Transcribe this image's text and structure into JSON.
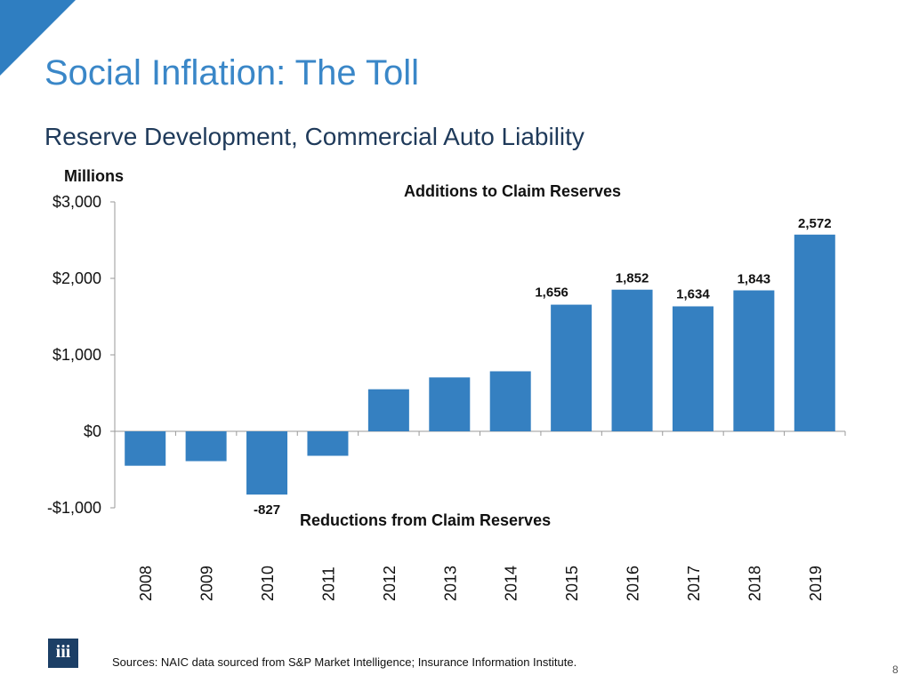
{
  "slide": {
    "title": "Social Inflation: The Toll",
    "subtitle": "Reserve Development, Commercial Auto Liability",
    "units_label": "Millions",
    "source": "Sources: NAIC data sourced from S&P Market Intelligence; Insurance Information Institute.",
    "page_number": "8",
    "logo_text": "iii"
  },
  "chart_data": {
    "type": "bar",
    "title": "Additions to Claim Reserves",
    "annotation_negative": "Reductions from Claim Reserves",
    "xlabel": "",
    "ylabel": "Millions",
    "ylim": [
      -1000,
      3000
    ],
    "yticks": [
      3000,
      2000,
      1000,
      0,
      -1000
    ],
    "ytick_labels": [
      "$3,000",
      "$2,000",
      "$1,000",
      "$0",
      "-$1,000"
    ],
    "categories": [
      "2008",
      "2009",
      "2010",
      "2011",
      "2012",
      "2013",
      "2014",
      "2015",
      "2016",
      "2017",
      "2018",
      "2019"
    ],
    "values": [
      -450,
      -390,
      -827,
      -320,
      550,
      705,
      785,
      1656,
      1852,
      1634,
      1843,
      2572
    ],
    "data_labels": [
      "",
      "",
      "-827",
      "",
      "",
      "",
      "",
      "1,656",
      "1,852",
      "1,634",
      "1,843",
      "2,572"
    ],
    "bar_color": "#3580c1"
  }
}
